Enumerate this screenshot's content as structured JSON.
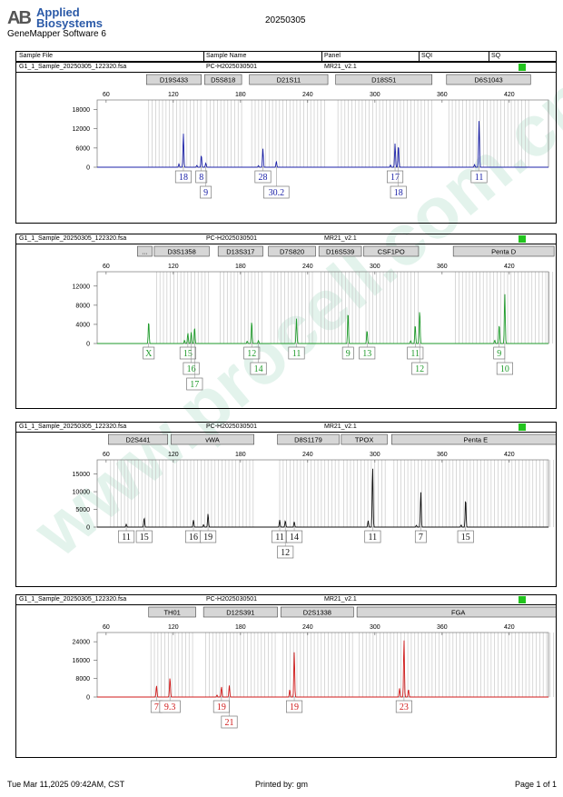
{
  "logo": {
    "mark": "AB",
    "line1": "Applied",
    "line2": "Biosystems"
  },
  "app_name": "GeneMapper Software 6",
  "run_date": "20250305",
  "table_header": {
    "sample_file": "Sample File",
    "sample_name": "Sample Name",
    "panel": "Panel",
    "sqi": "SQI",
    "sq": "SQ"
  },
  "watermark": "www.procell.com.cn",
  "footer": {
    "date": "Tue Mar 11,2025 09:42AM, CST",
    "printed_by": "Printed by: gm",
    "page": "Page 1 of 1"
  },
  "colors": {
    "blue": "#1c22a8",
    "green": "#1e9a2a",
    "black": "#111111",
    "red": "#d01a1a",
    "bins": "#c8c8c8",
    "qc_flag": "#22c41e"
  },
  "chart_data": [
    {
      "type": "line",
      "dye": "blue",
      "color": "#1c22a8",
      "file": "G1_1_Sample_20250305_122320.fsa",
      "sample_name": "PC-H2025030501",
      "panel": "MR21_v2.1",
      "x_ticks": [
        60,
        120,
        180,
        240,
        300,
        360,
        420
      ],
      "xlim": [
        52,
        455
      ],
      "y_ticks": [
        0,
        6000,
        12000,
        18000
      ],
      "y_tick_labels": [
        "0",
        "6000",
        "12000",
        "18000"
      ],
      "ylim": [
        0,
        21000
      ],
      "markers": [
        {
          "name": "D19S433",
          "start": 96,
          "end": 145
        },
        {
          "name": "D5S818",
          "start": 148,
          "end": 181
        },
        {
          "name": "D21S11",
          "start": 188,
          "end": 258
        },
        {
          "name": "D18S51",
          "start": 265,
          "end": 351
        },
        {
          "name": "D6S1043",
          "start": 364,
          "end": 439
        }
      ],
      "peaks": [
        {
          "x": 129,
          "h": 10500,
          "label": "18",
          "row": 0
        },
        {
          "x": 145,
          "h": 3800,
          "label": "8",
          "row": 0
        },
        {
          "x": 149,
          "h": 1300,
          "label": "9",
          "row": 1
        },
        {
          "x": 200,
          "h": 5800,
          "label": "28",
          "row": 0
        },
        {
          "x": 212,
          "h": 1800,
          "label": "30.2",
          "row": 1
        },
        {
          "x": 318,
          "h": 7400,
          "label": "17",
          "row": 0
        },
        {
          "x": 321,
          "h": 6900,
          "label": "18",
          "row": 1
        },
        {
          "x": 393,
          "h": 14500,
          "label": "11",
          "row": 0
        }
      ],
      "minor": [
        {
          "x": 125,
          "h": 1000
        },
        {
          "x": 141,
          "h": 600
        },
        {
          "x": 196,
          "h": 500
        },
        {
          "x": 314,
          "h": 700
        },
        {
          "x": 389,
          "h": 800
        }
      ]
    },
    {
      "type": "line",
      "dye": "green",
      "color": "#1e9a2a",
      "file": "G1_1_Sample_20250305_122320.fsa",
      "sample_name": "PC-H2025030501",
      "panel": "MR21_v2.1",
      "x_ticks": [
        60,
        120,
        180,
        240,
        300,
        360,
        420
      ],
      "xlim": [
        52,
        455
      ],
      "y_ticks": [
        0,
        4000,
        8000,
        12000
      ],
      "y_tick_labels": [
        "0",
        "4000",
        "8000",
        "12000"
      ],
      "ylim": [
        0,
        15000
      ],
      "markers": [
        {
          "name": "...",
          "start": 88,
          "end": 101
        },
        {
          "name": "D3S1358",
          "start": 103,
          "end": 152
        },
        {
          "name": "D13S317",
          "start": 160,
          "end": 200
        },
        {
          "name": "D7S820",
          "start": 205,
          "end": 247
        },
        {
          "name": "D16S539",
          "start": 250,
          "end": 288
        },
        {
          "name": "CSF1PO",
          "start": 290,
          "end": 339
        },
        {
          "name": "Penta D",
          "start": 370,
          "end": 460
        }
      ],
      "peaks": [
        {
          "x": 98,
          "h": 4700,
          "label": "X",
          "row": 0
        },
        {
          "x": 133,
          "h": 2200,
          "label": "15",
          "row": 0
        },
        {
          "x": 136,
          "h": 2400,
          "label": "16",
          "row": 1
        },
        {
          "x": 139,
          "h": 3400,
          "label": "17",
          "row": 2
        },
        {
          "x": 190,
          "h": 4700,
          "label": "12",
          "row": 0
        },
        {
          "x": 196,
          "h": 600,
          "label": "14",
          "row": 1
        },
        {
          "x": 230,
          "h": 5200,
          "label": "11",
          "row": 0
        },
        {
          "x": 276,
          "h": 6700,
          "label": "9",
          "row": 0
        },
        {
          "x": 293,
          "h": 2800,
          "label": "13",
          "row": 0
        },
        {
          "x": 336,
          "h": 4000,
          "label": "11",
          "row": 0
        },
        {
          "x": 340,
          "h": 7000,
          "label": "12",
          "row": 1
        },
        {
          "x": 411,
          "h": 4000,
          "label": "9",
          "row": 0
        },
        {
          "x": 416,
          "h": 10500,
          "label": "10",
          "row": 1
        }
      ],
      "minor": [
        {
          "x": 130,
          "h": 700
        },
        {
          "x": 186,
          "h": 500
        },
        {
          "x": 332,
          "h": 600
        },
        {
          "x": 407,
          "h": 700
        }
      ]
    },
    {
      "type": "line",
      "dye": "black",
      "color": "#111111",
      "file": "G1_1_Sample_20250305_122320.fsa",
      "sample_name": "PC-H2025030501",
      "panel": "MR21_v2.1",
      "x_ticks": [
        60,
        120,
        180,
        240,
        300,
        360,
        420
      ],
      "xlim": [
        52,
        455
      ],
      "y_ticks": [
        0,
        5000,
        10000,
        15000
      ],
      "y_tick_labels": [
        "0",
        "5000",
        "10000",
        "15000"
      ],
      "ylim": [
        0,
        19000
      ],
      "markers": [
        {
          "name": "D2S441",
          "start": 62,
          "end": 115
        },
        {
          "name": "vWA",
          "start": 118,
          "end": 192
        },
        {
          "name": "D8S1179",
          "start": 213,
          "end": 268
        },
        {
          "name": "TPOX",
          "start": 270,
          "end": 311
        },
        {
          "name": "Penta E",
          "start": 315,
          "end": 465
        }
      ],
      "peaks": [
        {
          "x": 78,
          "h": 800,
          "label": "11",
          "row": 0
        },
        {
          "x": 94,
          "h": 2600,
          "label": "15",
          "row": 0
        },
        {
          "x": 138,
          "h": 2000,
          "label": "16",
          "row": 0
        },
        {
          "x": 151,
          "h": 3800,
          "label": "19",
          "row": 0
        },
        {
          "x": 215,
          "h": 2000,
          "label": "11",
          "row": 0
        },
        {
          "x": 220,
          "h": 1800,
          "label": "12",
          "row": 1
        },
        {
          "x": 228,
          "h": 1500,
          "label": "14",
          "row": 0
        },
        {
          "x": 298,
          "h": 17000,
          "label": "11",
          "row": 0
        },
        {
          "x": 341,
          "h": 10000,
          "label": "7",
          "row": 0
        },
        {
          "x": 381,
          "h": 8000,
          "label": "15",
          "row": 0
        }
      ],
      "minor": [
        {
          "x": 147,
          "h": 700
        },
        {
          "x": 294,
          "h": 1800
        },
        {
          "x": 337,
          "h": 500
        },
        {
          "x": 377,
          "h": 600
        }
      ]
    },
    {
      "type": "line",
      "dye": "red",
      "color": "#d01a1a",
      "file": "G1_1_Sample_20250305_122320.fsa",
      "sample_name": "PC-H2025030501",
      "panel": "MR21_v2.1",
      "x_ticks": [
        60,
        120,
        180,
        240,
        300,
        360,
        420
      ],
      "xlim": [
        52,
        455
      ],
      "y_ticks": [
        0,
        8000,
        16000,
        24000
      ],
      "y_tick_labels": [
        "0",
        "8000",
        "16000",
        "24000"
      ],
      "ylim": [
        0,
        28000
      ],
      "markers": [
        {
          "name": "TH01",
          "start": 98,
          "end": 140
        },
        {
          "name": "D12S391",
          "start": 147,
          "end": 213
        },
        {
          "name": "D2S1338",
          "start": 216,
          "end": 281
        },
        {
          "name": "FGA",
          "start": 284,
          "end": 465
        }
      ],
      "peaks": [
        {
          "x": 105,
          "h": 5000,
          "label": "7",
          "row": 0
        },
        {
          "x": 117,
          "h": 8500,
          "label": "9.3",
          "row": 0
        },
        {
          "x": 163,
          "h": 4500,
          "label": "19",
          "row": 0
        },
        {
          "x": 170,
          "h": 5000,
          "label": "21",
          "row": 1
        },
        {
          "x": 228,
          "h": 19500,
          "label": "19",
          "row": 0
        },
        {
          "x": 326,
          "h": 25000,
          "label": "23",
          "row": 0
        }
      ],
      "minor": [
        {
          "x": 159,
          "h": 800
        },
        {
          "x": 224,
          "h": 3200
        },
        {
          "x": 322,
          "h": 3800
        },
        {
          "x": 330,
          "h": 3300
        }
      ]
    }
  ]
}
